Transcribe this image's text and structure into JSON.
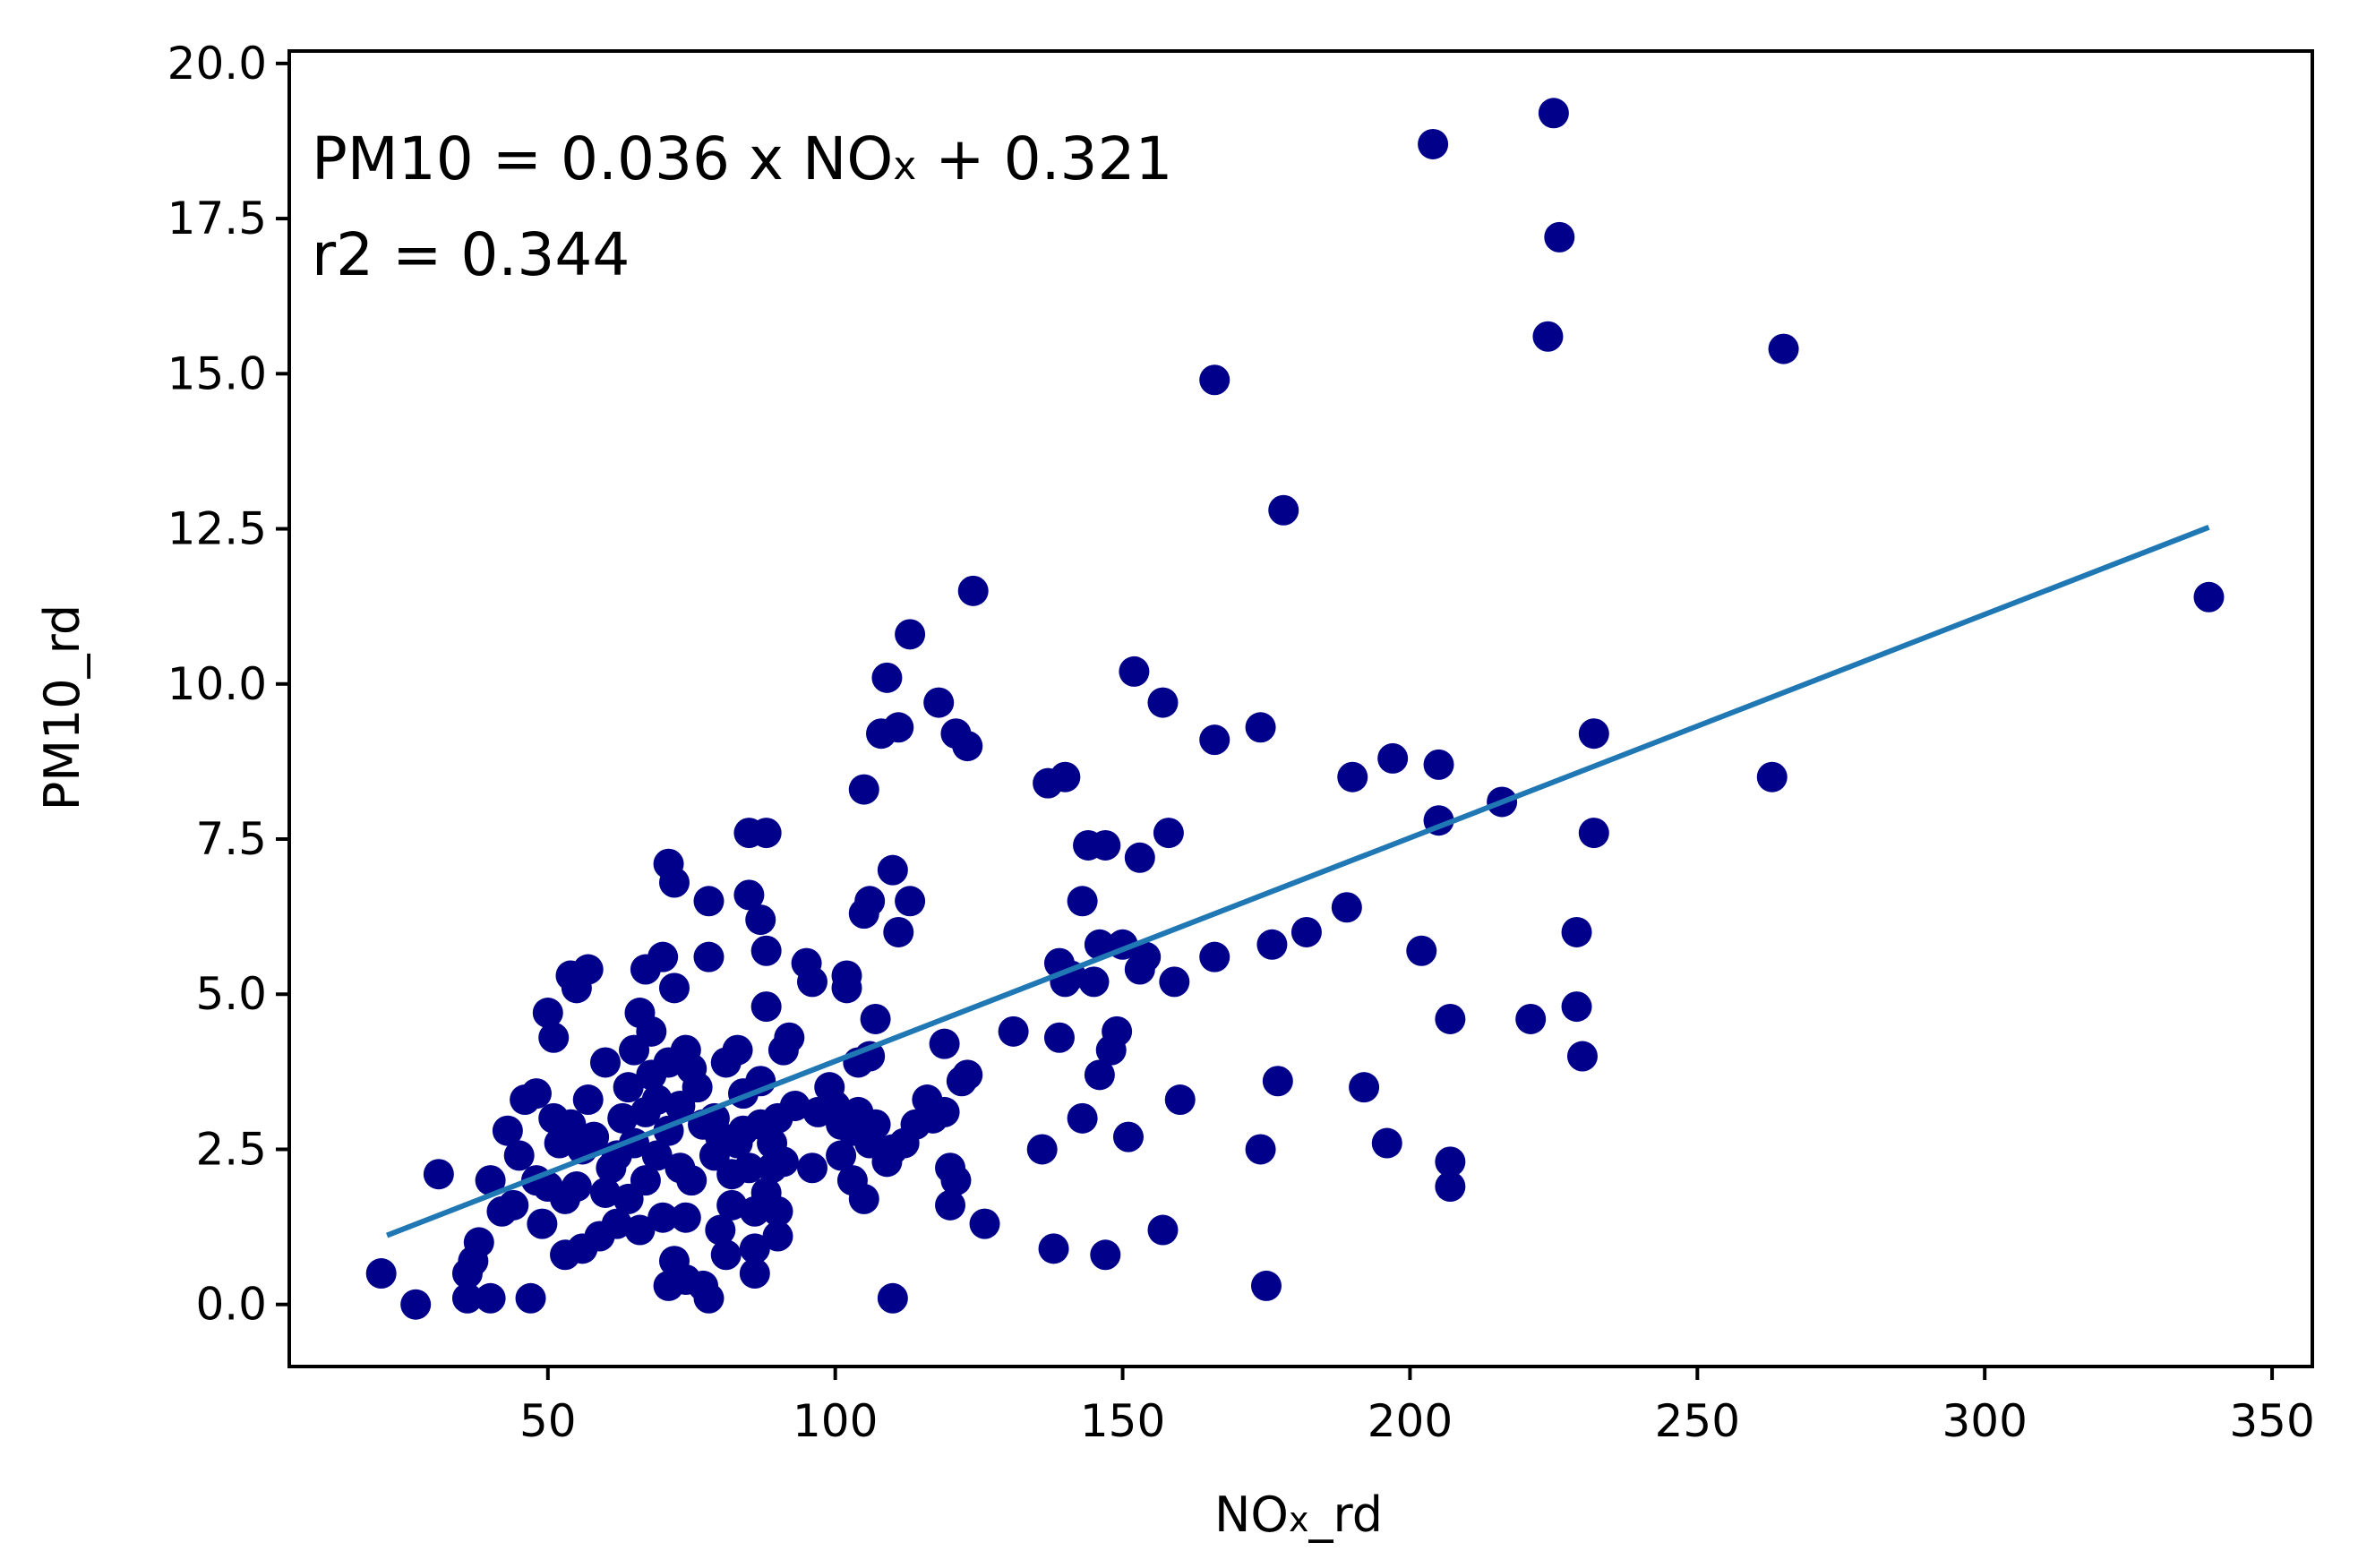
{
  "chart_data": {
    "type": "scatter",
    "xlabel_main": "NO",
    "xlabel_sub": "x",
    "xlabel_tail": "_rd",
    "ylabel": "PM10_rd",
    "xlim": [
      5,
      357
    ],
    "ylim": [
      -1.0,
      20.2
    ],
    "xticks": [
      50,
      100,
      150,
      200,
      250,
      300,
      350
    ],
    "yticks": [
      0.0,
      2.5,
      5.0,
      7.5,
      10.0,
      12.5,
      15.0,
      17.5,
      20.0
    ],
    "xtick_labels": [
      "50",
      "100",
      "150",
      "200",
      "250",
      "300",
      "350"
    ],
    "ytick_labels": [
      "0.0",
      "2.5",
      "5.0",
      "7.5",
      "10.0",
      "12.5",
      "15.0",
      "17.5",
      "20.0"
    ],
    "grid": false,
    "annotation": {
      "eq_main": "PM10 = 0.036 x NO",
      "eq_sub": "x",
      "eq_tail": " + 0.321",
      "r2": "r2 = 0.344"
    },
    "colors": {
      "points": "#00008b",
      "fit_line": "#1f77b4",
      "axes": "#000000"
    },
    "fit_line": {
      "slope": 0.036,
      "intercept": 0.321,
      "x_range": [
        22,
        339
      ]
    },
    "points": [
      [
        21,
        0.5
      ],
      [
        27,
        0.0
      ],
      [
        31,
        2.1
      ],
      [
        36,
        0.1
      ],
      [
        36,
        0.5
      ],
      [
        37,
        0.7
      ],
      [
        38,
        1.0
      ],
      [
        40,
        0.1
      ],
      [
        40,
        2.0
      ],
      [
        42,
        1.5
      ],
      [
        43,
        2.8
      ],
      [
        44,
        1.6
      ],
      [
        45,
        2.4
      ],
      [
        46,
        3.3
      ],
      [
        47,
        0.1
      ],
      [
        48,
        3.4
      ],
      [
        48,
        2.0
      ],
      [
        49,
        1.3
      ],
      [
        50,
        4.7
      ],
      [
        50,
        1.9
      ],
      [
        51,
        4.3
      ],
      [
        51,
        3.0
      ],
      [
        52,
        2.6
      ],
      [
        53,
        0.8
      ],
      [
        53,
        1.7
      ],
      [
        54,
        5.3
      ],
      [
        54,
        2.9
      ],
      [
        55,
        5.1
      ],
      [
        55,
        1.9
      ],
      [
        56,
        0.9
      ],
      [
        56,
        2.5
      ],
      [
        57,
        5.4
      ],
      [
        57,
        3.3
      ],
      [
        58,
        2.7
      ],
      [
        59,
        1.1
      ],
      [
        60,
        3.9
      ],
      [
        60,
        1.8
      ],
      [
        61,
        2.2
      ],
      [
        62,
        1.3
      ],
      [
        62,
        2.4
      ],
      [
        63,
        3.0
      ],
      [
        64,
        3.5
      ],
      [
        64,
        1.7
      ],
      [
        65,
        4.1
      ],
      [
        65,
        2.6
      ],
      [
        66,
        4.7
      ],
      [
        66,
        1.2
      ],
      [
        67,
        5.4
      ],
      [
        67,
        3.1
      ],
      [
        67,
        2.0
      ],
      [
        68,
        4.4
      ],
      [
        68,
        3.7
      ],
      [
        69,
        3.3
      ],
      [
        69,
        2.4
      ],
      [
        70,
        5.6
      ],
      [
        70,
        1.4
      ],
      [
        71,
        0.3
      ],
      [
        71,
        2.8
      ],
      [
        71,
        3.9
      ],
      [
        71,
        7.1
      ],
      [
        72,
        6.8
      ],
      [
        72,
        0.7
      ],
      [
        72,
        5.1
      ],
      [
        73,
        2.2
      ],
      [
        73,
        3.2
      ],
      [
        74,
        4.1
      ],
      [
        74,
        1.4
      ],
      [
        74,
        0.4
      ],
      [
        75,
        3.8
      ],
      [
        75,
        2.0
      ],
      [
        76,
        3.5
      ],
      [
        77,
        2.9
      ],
      [
        77,
        0.3
      ],
      [
        78,
        5.6
      ],
      [
        78,
        6.5
      ],
      [
        78,
        0.1
      ],
      [
        79,
        2.4
      ],
      [
        79,
        3.0
      ],
      [
        80,
        1.2
      ],
      [
        80,
        2.7
      ],
      [
        81,
        3.9
      ],
      [
        81,
        0.8
      ],
      [
        82,
        2.1
      ],
      [
        82,
        1.6
      ],
      [
        83,
        4.1
      ],
      [
        83,
        2.6
      ],
      [
        84,
        2.8
      ],
      [
        84,
        3.4
      ],
      [
        85,
        7.6
      ],
      [
        85,
        2.2
      ],
      [
        85,
        6.6
      ],
      [
        86,
        0.9
      ],
      [
        86,
        0.5
      ],
      [
        86,
        1.5
      ],
      [
        87,
        6.2
      ],
      [
        87,
        2.9
      ],
      [
        87,
        3.6
      ],
      [
        88,
        5.7
      ],
      [
        88,
        7.6
      ],
      [
        88,
        4.8
      ],
      [
        88,
        1.8
      ],
      [
        89,
        2.6
      ],
      [
        89,
        2.2
      ],
      [
        90,
        3.0
      ],
      [
        90,
        1.5
      ],
      [
        90,
        1.1
      ],
      [
        91,
        4.1
      ],
      [
        91,
        2.3
      ],
      [
        92,
        4.3
      ],
      [
        93,
        3.2
      ],
      [
        95,
        5.5
      ],
      [
        96,
        2.2
      ],
      [
        96,
        5.2
      ],
      [
        97,
        3.1
      ],
      [
        99,
        3.5
      ],
      [
        100,
        3.2
      ],
      [
        101,
        2.9
      ],
      [
        101,
        2.4
      ],
      [
        102,
        5.3
      ],
      [
        102,
        5.1
      ],
      [
        103,
        2.8
      ],
      [
        103,
        2.0
      ],
      [
        104,
        3.1
      ],
      [
        104,
        3.9
      ],
      [
        105,
        1.7
      ],
      [
        105,
        8.3
      ],
      [
        105,
        6.3
      ],
      [
        106,
        6.5
      ],
      [
        106,
        2.6
      ],
      [
        106,
        4.0
      ],
      [
        107,
        4.6
      ],
      [
        107,
        2.9
      ],
      [
        108,
        9.2
      ],
      [
        109,
        10.1
      ],
      [
        109,
        2.3
      ],
      [
        110,
        0.1
      ],
      [
        110,
        2.5
      ],
      [
        110,
        7.0
      ],
      [
        111,
        6.0
      ],
      [
        111,
        9.3
      ],
      [
        112,
        2.6
      ],
      [
        113,
        6.5
      ],
      [
        113,
        10.8
      ],
      [
        114,
        2.9
      ],
      [
        116,
        3.3
      ],
      [
        117,
        3.0
      ],
      [
        118,
        9.7
      ],
      [
        119,
        3.1
      ],
      [
        119,
        4.2
      ],
      [
        120,
        2.2
      ],
      [
        120,
        1.6
      ],
      [
        121,
        2.0
      ],
      [
        121,
        9.2
      ],
      [
        122,
        3.6
      ],
      [
        123,
        9.0
      ],
      [
        123,
        3.7
      ],
      [
        124,
        11.5
      ],
      [
        126,
        1.3
      ],
      [
        131,
        4.4
      ],
      [
        136,
        2.5
      ],
      [
        137,
        8.4
      ],
      [
        138,
        0.9
      ],
      [
        139,
        5.5
      ],
      [
        139,
        4.3
      ],
      [
        140,
        5.2
      ],
      [
        140,
        8.5
      ],
      [
        141,
        5.3
      ],
      [
        143,
        6.5
      ],
      [
        143,
        3.0
      ],
      [
        144,
        7.4
      ],
      [
        145,
        5.2
      ],
      [
        146,
        5.8
      ],
      [
        146,
        3.7
      ],
      [
        147,
        0.8
      ],
      [
        147,
        7.4
      ],
      [
        148,
        4.1
      ],
      [
        149,
        4.4
      ],
      [
        150,
        5.8
      ],
      [
        151,
        2.7
      ],
      [
        152,
        10.2
      ],
      [
        153,
        7.2
      ],
      [
        153,
        5.4
      ],
      [
        154,
        5.6
      ],
      [
        157,
        1.2
      ],
      [
        157,
        9.7
      ],
      [
        158,
        7.6
      ],
      [
        159,
        5.2
      ],
      [
        160,
        3.3
      ],
      [
        166,
        14.9
      ],
      [
        166,
        9.1
      ],
      [
        166,
        5.6
      ],
      [
        174,
        9.3
      ],
      [
        174,
        2.5
      ],
      [
        175,
        0.3
      ],
      [
        176,
        5.8
      ],
      [
        177,
        3.6
      ],
      [
        178,
        12.8
      ],
      [
        182,
        6.0
      ],
      [
        189,
        6.4
      ],
      [
        190,
        8.5
      ],
      [
        192,
        3.5
      ],
      [
        196,
        2.6
      ],
      [
        197,
        8.8
      ],
      [
        202,
        5.7
      ],
      [
        204,
        18.7
      ],
      [
        205,
        8.7
      ],
      [
        205,
        7.8
      ],
      [
        207,
        4.6
      ],
      [
        207,
        1.9
      ],
      [
        207,
        2.3
      ],
      [
        216,
        8.1
      ],
      [
        221,
        4.6
      ],
      [
        224,
        15.6
      ],
      [
        225,
        19.2
      ],
      [
        226,
        17.2
      ],
      [
        229,
        6.0
      ],
      [
        229,
        4.8
      ],
      [
        230,
        4.0
      ],
      [
        232,
        9.2
      ],
      [
        232,
        7.6
      ],
      [
        263,
        8.5
      ],
      [
        265,
        15.4
      ],
      [
        339,
        11.4
      ]
    ]
  }
}
